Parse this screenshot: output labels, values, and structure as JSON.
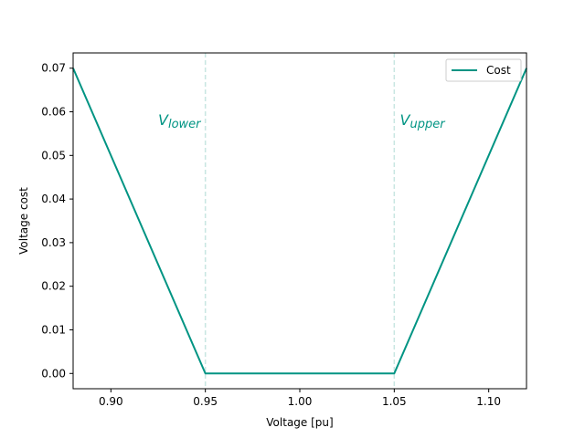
{
  "chart_data": {
    "type": "line",
    "title": "",
    "xlabel": "Voltage [pu]",
    "ylabel": "Voltage cost",
    "xlim": [
      0.88,
      1.12
    ],
    "ylim": [
      -0.0035,
      0.0735
    ],
    "xticks": [
      0.9,
      0.95,
      1.0,
      1.05,
      1.1
    ],
    "xtick_labels": [
      "0.90",
      "0.95",
      "1.00",
      "1.05",
      "1.10"
    ],
    "yticks": [
      0.0,
      0.01,
      0.02,
      0.03,
      0.04,
      0.05,
      0.06,
      0.07
    ],
    "ytick_labels": [
      "0.00",
      "0.01",
      "0.02",
      "0.03",
      "0.04",
      "0.05",
      "0.06",
      "0.07"
    ],
    "grid": false,
    "legend_position": "top-right",
    "series": [
      {
        "name": "Cost",
        "color": "#009483",
        "x": [
          0.88,
          0.95,
          1.05,
          1.12
        ],
        "y": [
          0.07,
          0.0,
          0.0,
          0.07
        ]
      }
    ],
    "vlines": [
      {
        "x": 0.95,
        "color": "#c8e6e2",
        "style": "dashed"
      },
      {
        "x": 1.05,
        "color": "#c8e6e2",
        "style": "dashed"
      }
    ],
    "annotations": [
      {
        "main": "V",
        "sub": "lower",
        "x": 0.925,
        "y": 0.058
      },
      {
        "main": "V",
        "sub": "upper",
        "x": 1.053,
        "y": 0.058
      }
    ]
  }
}
